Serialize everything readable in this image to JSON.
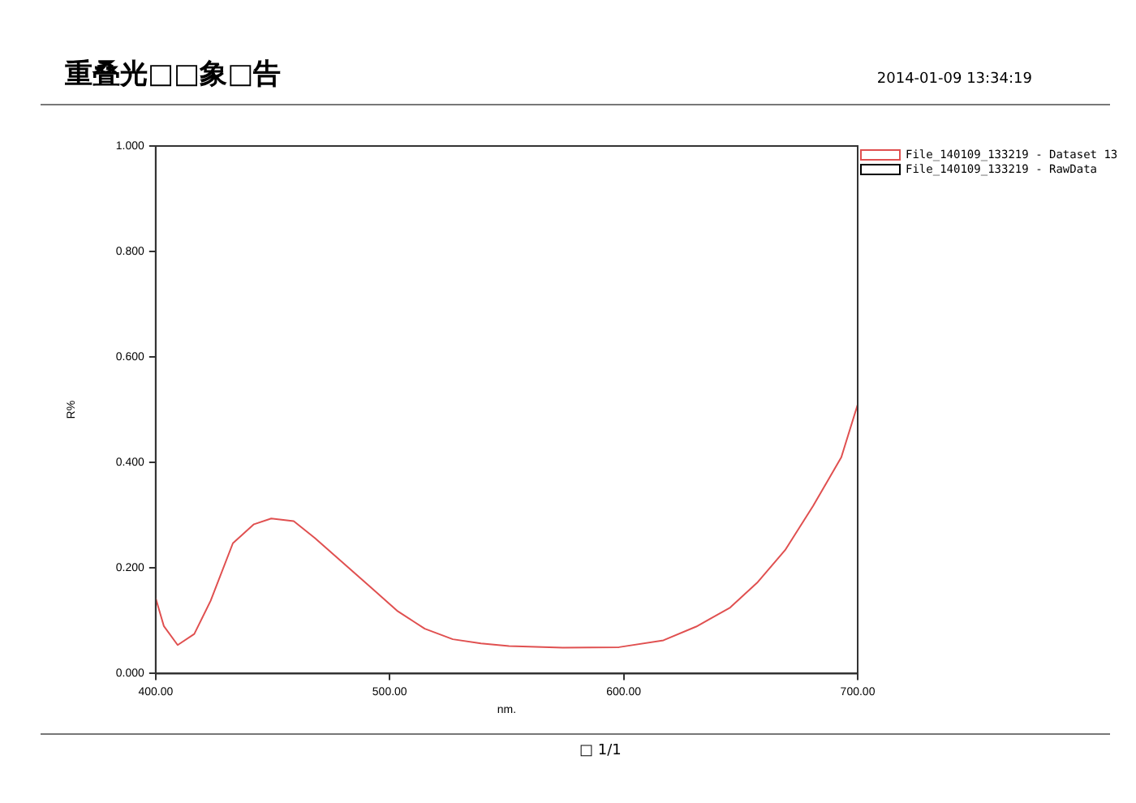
{
  "chart_data": {
    "type": "line",
    "title": "重叠光□□象□告",
    "xlabel": "nm.",
    "ylabel": "R%",
    "annotations": [
      "2014-01-09  13:34:19",
      "□ 1/1"
    ],
    "xlim": [
      400,
      700
    ],
    "xticks": [
      {
        "value": 400,
        "label": "400.00"
      },
      {
        "value": 500,
        "label": "500.00"
      },
      {
        "value": 600,
        "label": "600.00"
      },
      {
        "value": 700,
        "label": "700.00"
      }
    ],
    "ylim": [
      0,
      1
    ],
    "yticks": [
      {
        "value": 0,
        "label": "0.000"
      },
      {
        "value": 0.2,
        "label": "0.200"
      },
      {
        "value": 0.4,
        "label": "0.400"
      },
      {
        "value": 0.6,
        "label": "0.600"
      },
      {
        "value": 0.8,
        "label": "0.800"
      },
      {
        "value": 1,
        "label": "1.000"
      }
    ],
    "grid": false,
    "legend": "top right",
    "marker": "none",
    "line_style": "solid",
    "x": [
      400,
      403.5,
      409.4,
      416.5,
      423.5,
      433,
      442,
      449.4,
      459,
      468,
      480,
      491.8,
      503.5,
      515,
      527,
      539,
      551,
      574,
      598,
      617,
      631,
      645.5,
      657,
      669,
      681,
      693,
      700
    ],
    "series": [
      {
        "name": "File_140109_133219 - Dataset 13",
        "color": "#e05050",
        "values": [
          0.143,
          0.09,
          0.054,
          0.075,
          0.138,
          0.247,
          0.283,
          0.294,
          0.289,
          0.257,
          0.21,
          0.164,
          0.118,
          0.085,
          0.065,
          0.057,
          0.052,
          0.049,
          0.05,
          0.063,
          0.089,
          0.125,
          0.172,
          0.234,
          0.318,
          0.41,
          0.51
        ]
      },
      {
        "name": "File_140109_133219 - RawData",
        "color": "#000000",
        "values": [
          null,
          null,
          null,
          null,
          null,
          null,
          null,
          null,
          null,
          null,
          null,
          null,
          null,
          null,
          null,
          null,
          null,
          null,
          null,
          null,
          null,
          null,
          null,
          null,
          null,
          null,
          null
        ]
      }
    ]
  }
}
